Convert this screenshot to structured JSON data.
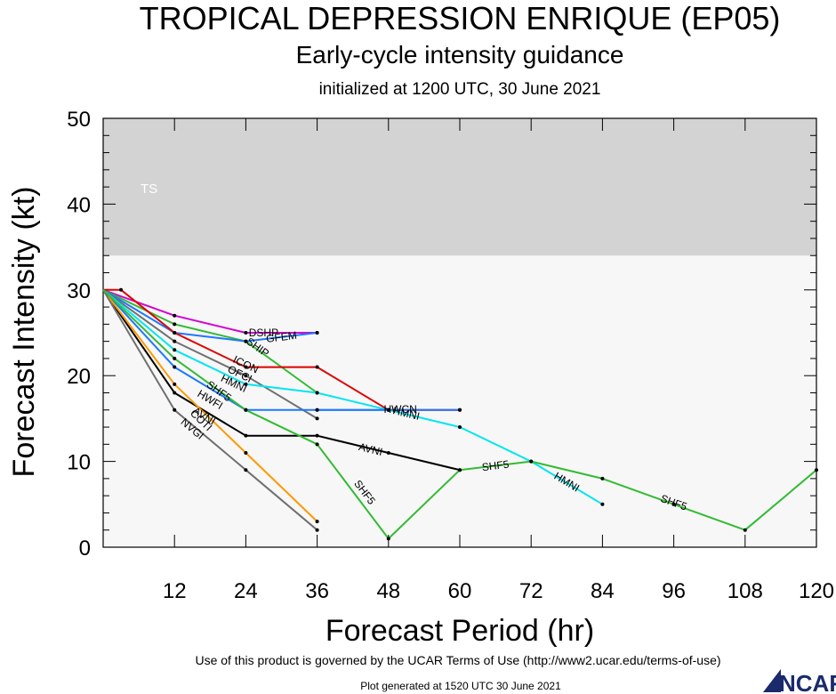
{
  "title": "TROPICAL DEPRESSION ENRIQUE (EP05)",
  "subtitle": "Early-cycle intensity guidance",
  "init_line": "initialized at 1200 UTC, 30 June 2021",
  "footer": {
    "terms": "Use of this product is governed by the UCAR Terms of Use (http://www2.ucar.edu/terms-of-use)",
    "generated": "Plot generated at 1520 UTC   30 June 2021",
    "logo_text": "NCAR"
  },
  "colors": {
    "ts_band": "#d3d3d3",
    "plot_background": "#f7f7f7"
  },
  "chart_data": {
    "type": "line",
    "title": "TROPICAL DEPRESSION ENRIQUE (EP05)",
    "xlabel": "Forecast Period (hr)",
    "ylabel": "Forecast Intensity (kt)",
    "xlim": [
      0,
      120
    ],
    "ylim": [
      0,
      50
    ],
    "xticks": [
      12,
      24,
      36,
      48,
      60,
      72,
      84,
      96,
      108,
      120
    ],
    "yticks": [
      0,
      10,
      20,
      30,
      40,
      50
    ],
    "bands": [
      {
        "label": "TS",
        "from": 34,
        "to": 50,
        "color": "#d3d3d3"
      }
    ],
    "series": [
      {
        "name": "DSHP",
        "color": "#d400d4",
        "x": [
          0,
          12,
          24,
          36
        ],
        "y": [
          30,
          27,
          25,
          25
        ]
      },
      {
        "name": "SHIP",
        "color": "#33bb33",
        "x": [
          0,
          12,
          24,
          36
        ],
        "y": [
          30,
          26,
          24,
          18
        ]
      },
      {
        "name": "GFEM",
        "color": "#1e78ff",
        "x": [
          0,
          12,
          24,
          36
        ],
        "y": [
          30,
          25,
          24,
          25
        ]
      },
      {
        "name": "ICON",
        "color": "#e00000",
        "x": [
          0,
          3,
          12,
          24,
          36,
          48,
          60
        ],
        "y": [
          30,
          30,
          25,
          21,
          21,
          16,
          16
        ]
      },
      {
        "name": "OFCI",
        "color": "#707070",
        "x": [
          0,
          12,
          24,
          36
        ],
        "y": [
          30,
          24,
          20,
          15
        ]
      },
      {
        "name": "HMNI",
        "color": "#00e6f0",
        "x": [
          0,
          12,
          24,
          36,
          48,
          60,
          72,
          84
        ],
        "y": [
          30,
          23,
          19,
          18,
          16,
          14,
          10,
          5
        ]
      },
      {
        "name": "HWFI",
        "color": "#1e78ff",
        "x": [
          0,
          12,
          24,
          36,
          48
        ],
        "y": [
          30,
          21,
          16,
          16,
          16
        ]
      },
      {
        "name": "AVNI",
        "color": "#000000",
        "x": [
          0,
          12,
          24,
          36,
          48,
          60
        ],
        "y": [
          30,
          18,
          13,
          13,
          11,
          9
        ]
      },
      {
        "name": "COTI",
        "color": "#ff9900",
        "x": [
          0,
          12,
          24,
          36
        ],
        "y": [
          30,
          19,
          11,
          3
        ]
      },
      {
        "name": "NVGI",
        "color": "#707070",
        "x": [
          0,
          12,
          24,
          36
        ],
        "y": [
          30,
          16,
          9,
          2
        ]
      },
      {
        "name": "SHF5",
        "color": "#33bb33",
        "x": [
          0,
          12,
          24,
          36,
          48,
          60,
          72,
          84,
          96,
          108,
          120
        ],
        "y": [
          30,
          22,
          16,
          12,
          1,
          9,
          10,
          8,
          5,
          2,
          9
        ]
      },
      {
        "name": "HWCN",
        "color": "#1e78ff",
        "x": [
          36,
          48,
          60
        ],
        "y": [
          16,
          16,
          16
        ]
      }
    ],
    "annotations": [
      {
        "text": "DSHP",
        "x": 27,
        "y": 25,
        "series": "DSHP"
      },
      {
        "text": "GFEM",
        "x": 30,
        "y": 24.5,
        "series": "GFEM"
      },
      {
        "text": "SHIP",
        "x": 26,
        "y": 23.3,
        "series": "SHIP"
      },
      {
        "text": "ICON",
        "x": 24,
        "y": 21.3,
        "series": "ICON"
      },
      {
        "text": "OFCI",
        "x": 23,
        "y": 20.2,
        "series": "OFCI"
      },
      {
        "text": "HMNI",
        "x": 22,
        "y": 19.1,
        "series": "HMNI"
      },
      {
        "text": "SHF5",
        "x": 19.5,
        "y": 18.2,
        "series": "SHF5"
      },
      {
        "text": "HWFI",
        "x": 18,
        "y": 17.2,
        "series": "HWFI"
      },
      {
        "text": "AVNI",
        "x": 17,
        "y": 15.3,
        "series": "AVNI"
      },
      {
        "text": "COTI",
        "x": 16.5,
        "y": 14.8,
        "series": "COTI"
      },
      {
        "text": "NVGI",
        "x": 15,
        "y": 13.8,
        "series": "NVGI"
      },
      {
        "text": "HWCN",
        "x": 50,
        "y": 16.1,
        "series": "HWCN"
      },
      {
        "text": "HMNI",
        "x": 51,
        "y": 15.6,
        "series": "HMNI"
      },
      {
        "text": "AVNI",
        "x": 45,
        "y": 11.4,
        "series": "AVNI"
      },
      {
        "text": "SHF5",
        "x": 44,
        "y": 6.4,
        "series": "SHF5"
      },
      {
        "text": "SHF5",
        "x": 66,
        "y": 9.5,
        "series": "SHF5"
      },
      {
        "text": "HMNI",
        "x": 78,
        "y": 7.6,
        "series": "HMNI"
      },
      {
        "text": "SHF5",
        "x": 96,
        "y": 5.2,
        "series": "SHF5"
      }
    ]
  }
}
